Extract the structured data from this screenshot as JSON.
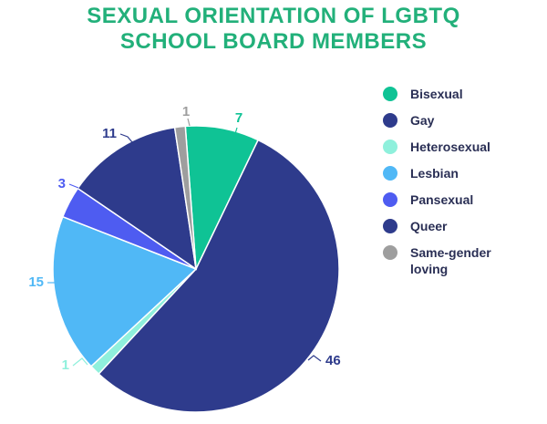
{
  "chart_data": {
    "type": "pie",
    "title_lines": [
      "SEXUAL ORIENTATION OF LGBTQ",
      "SCHOOL BOARD MEMBERS"
    ],
    "slices": [
      {
        "label": "Bisexual",
        "value": 7,
        "color": "#0fc395"
      },
      {
        "label": "Gay",
        "value": 46,
        "color": "#2e3b8c"
      },
      {
        "label": "Heterosexual",
        "value": 1,
        "color": "#8ff0dc"
      },
      {
        "label": "Lesbian",
        "value": 15,
        "color": "#50b8f6"
      },
      {
        "label": "Pansexual",
        "value": 3,
        "color": "#4e5cf1"
      },
      {
        "label": "Queer",
        "value": 11,
        "color": "#2e3b8c"
      },
      {
        "label": "Same-gender loving",
        "value": 1,
        "color": "#9e9e9e"
      }
    ],
    "legend_position": "right"
  }
}
